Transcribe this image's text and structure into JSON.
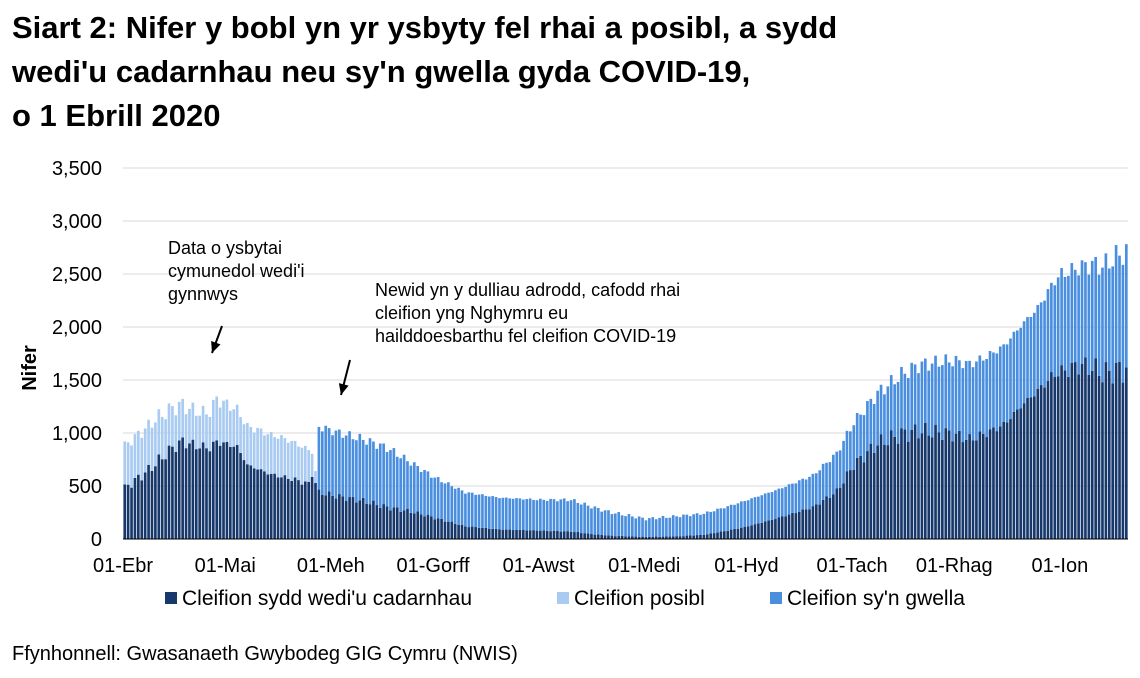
{
  "title_lines": [
    "Siart 2: Nifer y bobl yn yr ysbyty fel rhai a posibl, a sydd",
    "wedi'u cadarnhau neu sy'n gwella gyda COVID-19,",
    "o 1 Ebrill 2020"
  ],
  "source": "Ffynhonnell: Gwasanaeth Gwybodeg GIG Cymru (NWIS)",
  "colors": {
    "confirmed": "#17386b",
    "suspected": "#a9cbf2",
    "recovering": "#4a8fdf"
  },
  "chart_data": {
    "type": "bar",
    "stacked": true,
    "ylabel": "Nifer",
    "ylim": [
      0,
      3500
    ],
    "yticks": [
      0,
      500,
      1000,
      1500,
      2000,
      2500,
      3000,
      3500
    ],
    "ytick_labels": [
      "0",
      "500",
      "1,000",
      "1,500",
      "2,000",
      "2,500",
      "3,000",
      "3,500"
    ],
    "start_date": "2020-04-01",
    "xticks": [
      {
        "label": "01-Ebr",
        "date": "2020-04-01"
      },
      {
        "label": "01-Mai",
        "date": "2020-05-01"
      },
      {
        "label": "01-Meh",
        "date": "2020-06-01"
      },
      {
        "label": "01-Gorff",
        "date": "2020-07-01"
      },
      {
        "label": "01-Awst",
        "date": "2020-08-01"
      },
      {
        "label": "01-Medi",
        "date": "2020-09-01"
      },
      {
        "label": "01-Hyd",
        "date": "2020-10-01"
      },
      {
        "label": "01-Tach",
        "date": "2020-11-01"
      },
      {
        "label": "01-Rhag",
        "date": "2020-12-01"
      },
      {
        "label": "01-Ion",
        "date": "2021-01-01"
      }
    ],
    "series": [
      {
        "name": "Cleifion sydd wedi'u cadarnhau",
        "key": "confirmed",
        "knots": [
          [
            "2020-04-01",
            480
          ],
          [
            "2020-04-08",
            650
          ],
          [
            "2020-04-15",
            860
          ],
          [
            "2020-04-18",
            920
          ],
          [
            "2020-04-22",
            880
          ],
          [
            "2020-04-26",
            860
          ],
          [
            "2020-04-28",
            920
          ],
          [
            "2020-05-04",
            870
          ],
          [
            "2020-05-07",
            700
          ],
          [
            "2020-05-14",
            610
          ],
          [
            "2020-05-21",
            560
          ],
          [
            "2020-05-25",
            520
          ],
          [
            "2020-05-26",
            620
          ],
          [
            "2020-05-28",
            440
          ],
          [
            "2020-06-03",
            400
          ],
          [
            "2020-06-10",
            360
          ],
          [
            "2020-06-17",
            300
          ],
          [
            "2020-06-24",
            260
          ],
          [
            "2020-07-01",
            200
          ],
          [
            "2020-07-10",
            120
          ],
          [
            "2020-07-20",
            90
          ],
          [
            "2020-08-01",
            80
          ],
          [
            "2020-08-10",
            70
          ],
          [
            "2020-08-15",
            50
          ],
          [
            "2020-08-22",
            30
          ],
          [
            "2020-09-01",
            20
          ],
          [
            "2020-09-10",
            25
          ],
          [
            "2020-09-18",
            40
          ],
          [
            "2020-09-25",
            80
          ],
          [
            "2020-10-01",
            120
          ],
          [
            "2020-10-10",
            200
          ],
          [
            "2020-10-20",
            300
          ],
          [
            "2020-10-27",
            450
          ],
          [
            "2020-11-01",
            700
          ],
          [
            "2020-11-08",
            900
          ],
          [
            "2020-11-15",
            990
          ],
          [
            "2020-11-20",
            1020
          ],
          [
            "2020-11-28",
            1000
          ],
          [
            "2020-12-01",
            980
          ],
          [
            "2020-12-05",
            940
          ],
          [
            "2020-12-10",
            1000
          ],
          [
            "2020-12-15",
            1080
          ],
          [
            "2020-12-20",
            1250
          ],
          [
            "2020-12-25",
            1400
          ],
          [
            "2020-12-30",
            1560
          ],
          [
            "2021-01-03",
            1600
          ],
          [
            "2021-01-06",
            1640
          ],
          [
            "2021-01-10",
            1620
          ],
          [
            "2021-01-13",
            1560
          ],
          [
            "2021-01-18",
            1600
          ]
        ]
      },
      {
        "name": "Cleifion posibl",
        "key": "suspected",
        "knots": [
          [
            "2020-04-01",
            400
          ],
          [
            "2020-04-10",
            420
          ],
          [
            "2020-04-20",
            330
          ],
          [
            "2020-04-25",
            320
          ],
          [
            "2020-04-28",
            400
          ],
          [
            "2020-05-04",
            350
          ],
          [
            "2020-05-10",
            370
          ],
          [
            "2020-05-17",
            370
          ],
          [
            "2020-05-25",
            320
          ],
          [
            "2020-05-28",
            0
          ],
          [
            "2020-06-30",
            0
          ]
        ]
      },
      {
        "name": "Cleifion sy'n gwella",
        "key": "recovering",
        "knots": [
          [
            "2020-04-01",
            0
          ],
          [
            "2020-05-27",
            0
          ],
          [
            "2020-05-28",
            620
          ],
          [
            "2020-06-03",
            600
          ],
          [
            "2020-06-10",
            580
          ],
          [
            "2020-06-17",
            560
          ],
          [
            "2020-06-24",
            460
          ],
          [
            "2020-07-01",
            380
          ],
          [
            "2020-07-10",
            320
          ],
          [
            "2020-07-20",
            300
          ],
          [
            "2020-08-01",
            290
          ],
          [
            "2020-08-10",
            300
          ],
          [
            "2020-08-20",
            230
          ],
          [
            "2020-09-01",
            170
          ],
          [
            "2020-09-10",
            190
          ],
          [
            "2020-09-18",
            200
          ],
          [
            "2020-10-01",
            250
          ],
          [
            "2020-10-10",
            270
          ],
          [
            "2020-10-20",
            300
          ],
          [
            "2020-11-01",
            400
          ],
          [
            "2020-11-10",
            500
          ],
          [
            "2020-11-20",
            620
          ],
          [
            "2020-12-01",
            700
          ],
          [
            "2020-12-10",
            720
          ],
          [
            "2020-12-20",
            760
          ],
          [
            "2020-12-25",
            780
          ],
          [
            "2021-01-01",
            920
          ],
          [
            "2021-01-06",
            920
          ],
          [
            "2021-01-12",
            1000
          ],
          [
            "2021-01-16",
            1050
          ],
          [
            "2021-01-18",
            1090
          ]
        ]
      }
    ],
    "annotations": [
      {
        "lines": [
          "Data o ysbytai",
          "cymunedol wedi'i",
          "gynnwys"
        ],
        "date": "2020-04-26"
      },
      {
        "lines": [
          "Newid yn y dulliau adrodd, cafodd rhai",
          "cleifion yng Nghymru eu",
          "hailddoesbarthu fel cleifion COVID-19"
        ],
        "date": "2020-06-01"
      }
    ],
    "legend": "bottom"
  }
}
